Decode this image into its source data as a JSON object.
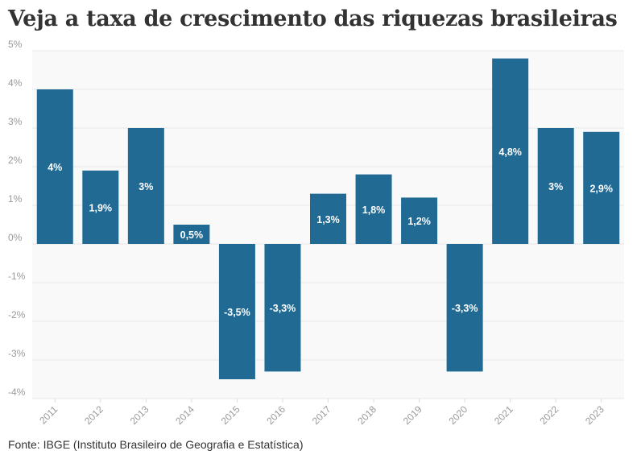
{
  "chart_data": {
    "type": "bar",
    "title": "Veja a taxa de crescimento das riquezas brasileiras",
    "source": "Fonte: IBGE (Instituto Brasileiro de Geografia e Estatística)",
    "categories": [
      "2011",
      "2012",
      "2013",
      "2014",
      "2015",
      "2016",
      "2017",
      "2018",
      "2019",
      "2020",
      "2021",
      "2022",
      "2023"
    ],
    "values": [
      4,
      1.9,
      3,
      0.5,
      -3.5,
      -3.3,
      1.3,
      1.8,
      1.2,
      -3.3,
      4.8,
      3,
      2.9
    ],
    "data_labels": [
      "4%",
      "1,9%",
      "3%",
      "0,5%",
      "-3,5%",
      "-3,3%",
      "1,3%",
      "1,8%",
      "1,2%",
      "-3,3%",
      "4,8%",
      "3%",
      "2,9%"
    ],
    "yticks": [
      5,
      4,
      3,
      2,
      1,
      0,
      -1,
      -2,
      -3,
      -4
    ],
    "ytick_labels": [
      "5%",
      "4%",
      "3%",
      "2%",
      "1%",
      "0%",
      "-1%",
      "-2%",
      "-3%",
      "-4%"
    ],
    "ylim": [
      -4,
      5
    ],
    "xlabel": "",
    "ylabel": "",
    "grid": true,
    "colors": {
      "bar": "#206a94",
      "plot_bg": "#f9f9f9",
      "grid": "#e8e8e8"
    }
  }
}
